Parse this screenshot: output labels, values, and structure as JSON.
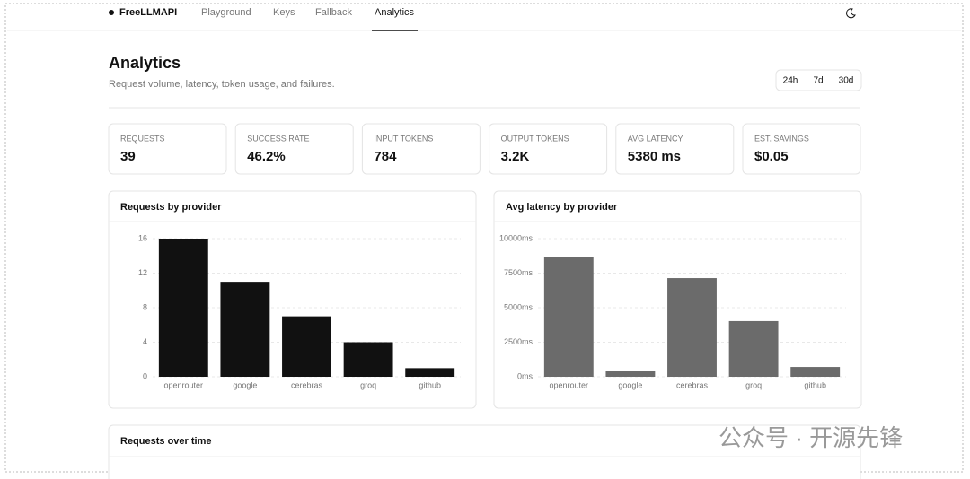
{
  "nav": {
    "brand": "FreeLLMAPI",
    "links": [
      "Playground",
      "Keys",
      "Fallback",
      "Analytics"
    ]
  },
  "header": {
    "title": "Analytics",
    "subtitle": "Request volume, latency, token usage, and failures.",
    "ranges": [
      "24h",
      "7d",
      "30d"
    ]
  },
  "stats": [
    {
      "label": "REQUESTS",
      "value": "39"
    },
    {
      "label": "SUCCESS RATE",
      "value": "46.2%"
    },
    {
      "label": "INPUT TOKENS",
      "value": "784"
    },
    {
      "label": "OUTPUT TOKENS",
      "value": "3.2K"
    },
    {
      "label": "AVG LATENCY",
      "value": "5380 ms"
    },
    {
      "label": "EST. SAVINGS",
      "value": "$0.05"
    }
  ],
  "chart_data": [
    {
      "type": "bar",
      "title": "Requests by provider",
      "categories": [
        "openrouter",
        "google",
        "cerebras",
        "groq",
        "github"
      ],
      "values": [
        16,
        11,
        7,
        4,
        1
      ],
      "color": "#111111",
      "ylim": [
        0,
        16
      ],
      "yticks": [
        0,
        4,
        8,
        12,
        16
      ],
      "grid": true
    },
    {
      "type": "bar",
      "title": "Avg latency by provider",
      "categories": [
        "openrouter",
        "google",
        "cerebras",
        "groq",
        "github"
      ],
      "values": [
        8700,
        390,
        7140,
        4030,
        710
      ],
      "color": "#6b6b6b",
      "ylim": [
        0,
        10000
      ],
      "yticks": [
        {
          "value": 0,
          "label": "0ms"
        },
        {
          "value": 2500,
          "label": "2500ms"
        },
        {
          "value": 5000,
          "label": "5000ms"
        },
        {
          "value": 7500,
          "label": "7500ms"
        },
        {
          "value": 10000,
          "label": "10000ms"
        }
      ],
      "grid": true
    }
  ],
  "timeline_panel": {
    "title": "Requests over time"
  },
  "watermark": "公众号 · 开源先锋"
}
